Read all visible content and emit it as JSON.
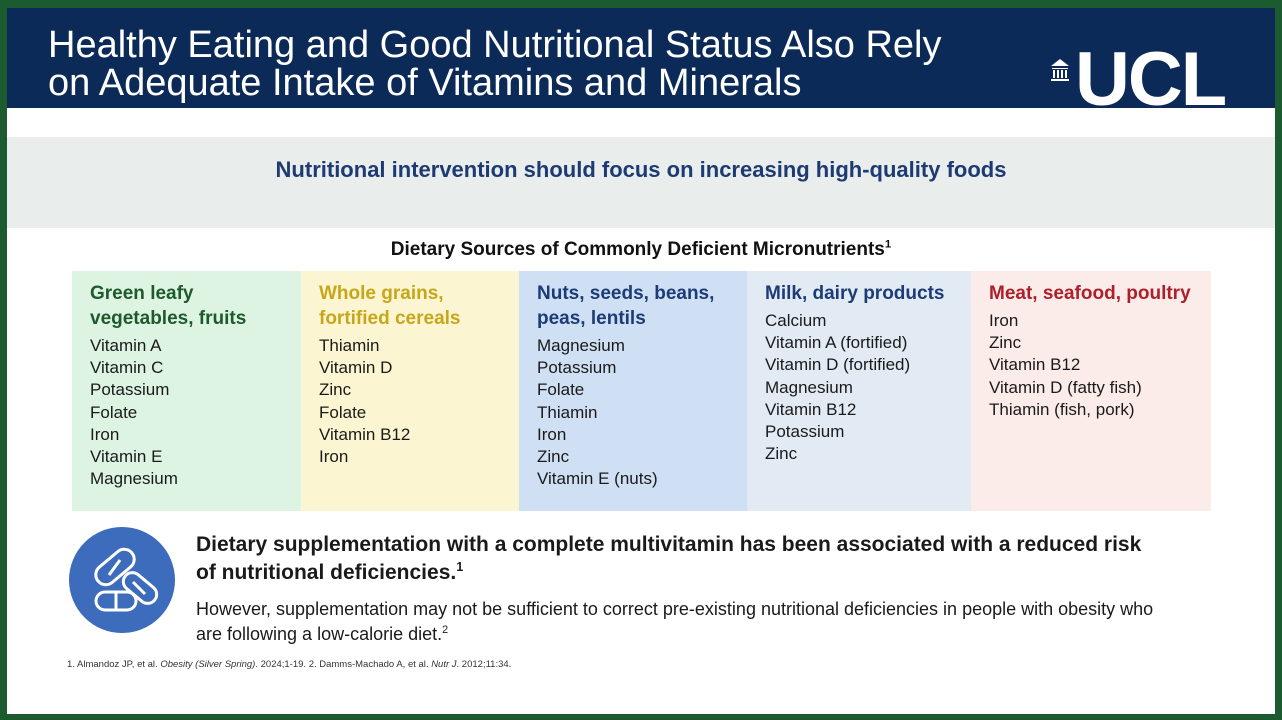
{
  "header": {
    "title_lines": [
      "Healthy Eating and Good Nutritional Status Also Rely",
      "on Adequate Intake of Vitamins and Minerals"
    ],
    "logo": "UCL"
  },
  "banner": "Nutritional intervention should focus on increasing high-quality foods",
  "section": {
    "title": "Dietary Sources of Commonly Deficient Micronutrients",
    "title_sup": "1",
    "columns": [
      {
        "title": "Green leafy vegetables, fruits",
        "items": [
          "Vitamin A",
          "Vitamin C",
          "Potassium",
          "Folate",
          "Iron",
          "Vitamin E",
          "Magnesium"
        ]
      },
      {
        "title": "Whole grains, fortified cereals",
        "items": [
          "Thiamin",
          "Vitamin D",
          "Zinc",
          "Folate",
          "Vitamin B12",
          "Iron"
        ]
      },
      {
        "title": "Nuts, seeds, beans, peas, lentils",
        "items": [
          "Magnesium",
          "Potassium",
          "Folate",
          "Thiamin",
          "Iron",
          "Zinc",
          "Vitamin E (nuts)"
        ]
      },
      {
        "title": "Milk, dairy products",
        "items": [
          "Calcium",
          "Vitamin A (fortified)",
          "Vitamin D (fortified)",
          "Magnesium",
          "Vitamin B12",
          "Potassium",
          "Zinc"
        ]
      },
      {
        "title": "Meat, seafood, poultry",
        "items": [
          "Iron",
          "Zinc",
          "Vitamin B12",
          "Vitamin D (fatty fish)",
          "Thiamin (fish, pork)"
        ]
      }
    ]
  },
  "supplement": {
    "statement": "Dietary supplementation with a complete multivitamin has been associated with a reduced risk of nutritional deficiencies.",
    "statement_sup": "1",
    "note": "However, supplementation may not be sufficient to correct pre-existing nutritional deficiencies in people with obesity who are following a low-calorie diet.",
    "note_sup": "2"
  },
  "references": [
    "1. Almandoz JP, et al. ",
    "Obesity (Silver Spring)",
    ". 2024;1-19. 2. Damms-Machado A, et al. ",
    "Nutr J",
    ". 2012;11:34."
  ]
}
